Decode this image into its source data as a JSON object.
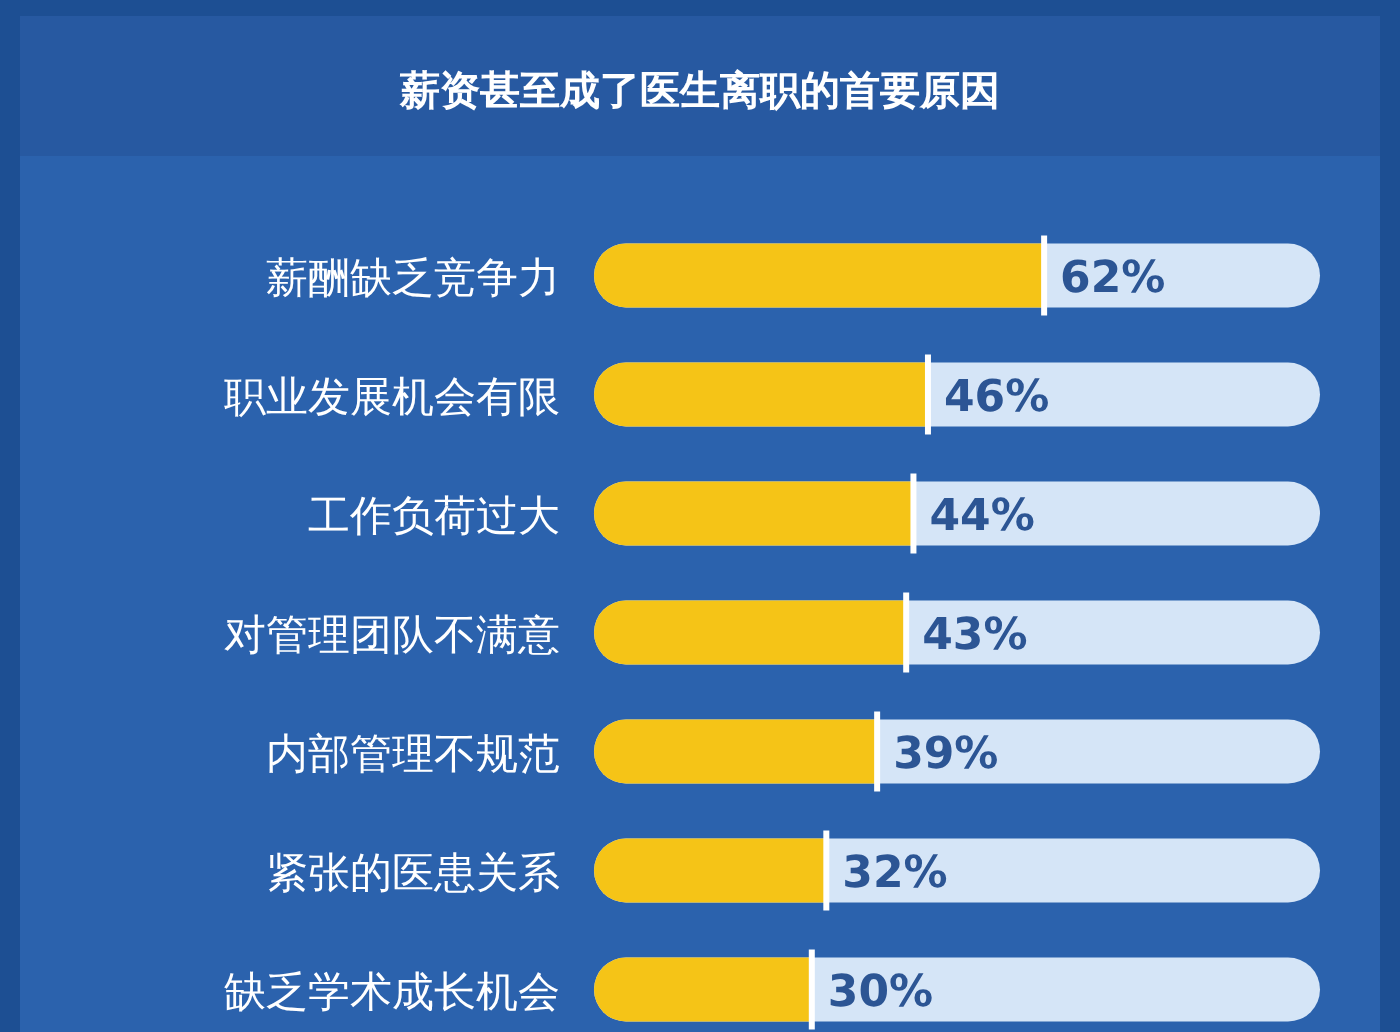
{
  "chart_data": {
    "type": "bar",
    "orientation": "horizontal",
    "title": "薪资甚至成了医生离职的首要原因",
    "categories": [
      "薪酬缺乏竞争力",
      "职业发展机会有限",
      "工作负荷过大",
      "对管理团队不满意",
      "内部管理不规范",
      "紧张的医患关系",
      "缺乏学术成长机会"
    ],
    "values": [
      62,
      46,
      44,
      43,
      39,
      32,
      30
    ],
    "value_labels": [
      "62%",
      "46%",
      "44%",
      "43%",
      "39%",
      "32%",
      "30%"
    ],
    "color": "#f5c417",
    "xlim": [
      0,
      100
    ]
  }
}
